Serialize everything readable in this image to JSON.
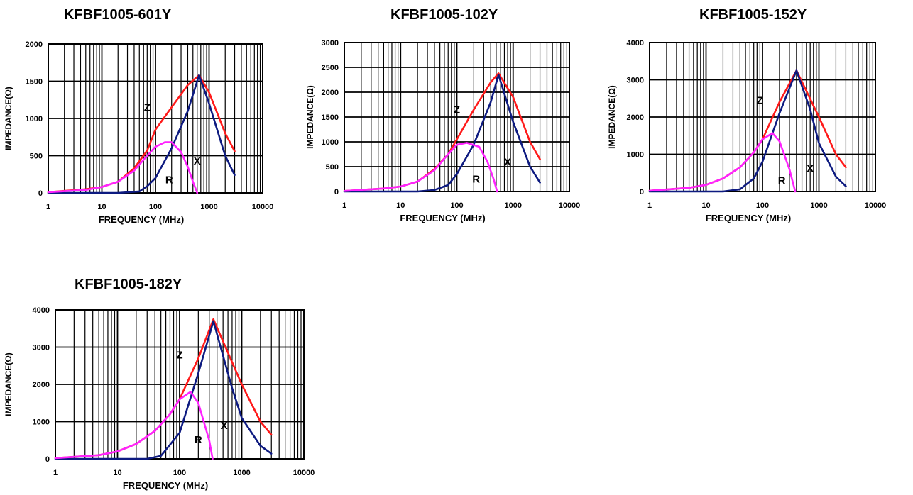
{
  "colors": {
    "Z": "#ff1a1a",
    "X": "#0d1a80",
    "R": "#ff22ff",
    "grid": "#000000"
  },
  "chart_data": [
    {
      "type": "line",
      "title": "KFBF1005-601Y",
      "xlabel": "FREQUENCY (MHz)",
      "ylabel": "IMPEDANCE(Ω)",
      "xscale": "log",
      "xlim": [
        1,
        10000
      ],
      "ylim": [
        0,
        2000
      ],
      "xticks": [
        "1",
        "10",
        "100",
        "1000",
        "10000"
      ],
      "yticks": [
        "0",
        "500",
        "1000",
        "1500",
        "2000"
      ],
      "series": [
        {
          "name": "Z",
          "x": [
            1,
            5,
            10,
            20,
            40,
            70,
            100,
            200,
            400,
            650,
            1000,
            2000,
            3000
          ],
          "y": [
            10,
            50,
            80,
            150,
            330,
            570,
            850,
            1150,
            1450,
            1580,
            1350,
            800,
            560
          ]
        },
        {
          "name": "X",
          "x": [
            1,
            20,
            50,
            70,
            100,
            200,
            400,
            650,
            1000,
            2000,
            3000
          ],
          "y": [
            0,
            0,
            20,
            90,
            200,
            600,
            1100,
            1580,
            1200,
            500,
            240
          ]
        },
        {
          "name": "R",
          "x": [
            1,
            5,
            10,
            20,
            40,
            70,
            100,
            150,
            200,
            300,
            400,
            500,
            600
          ],
          "y": [
            10,
            40,
            80,
            150,
            300,
            500,
            620,
            680,
            680,
            550,
            350,
            150,
            0
          ]
        }
      ],
      "annotations": [
        {
          "text": "Z",
          "x": 70,
          "y": 1100
        },
        {
          "text": "X",
          "x": 600,
          "y": 380
        },
        {
          "text": "R",
          "x": 180,
          "y": 130
        }
      ]
    },
    {
      "type": "line",
      "title": "KFBF1005-102Y",
      "xlabel": "FREQUENCY (MHz)",
      "ylabel": "IMPEDANCE(Ω)",
      "xscale": "log",
      "xlim": [
        1,
        10000
      ],
      "ylim": [
        0,
        3000
      ],
      "xticks": [
        "1",
        "10",
        "100",
        "1000",
        "10000"
      ],
      "yticks": [
        "0",
        "500",
        "1000",
        "1500",
        "2000",
        "2500",
        "3000"
      ],
      "series": [
        {
          "name": "Z",
          "x": [
            1,
            5,
            10,
            20,
            40,
            70,
            100,
            200,
            400,
            550,
            1000,
            2000,
            3000
          ],
          "y": [
            10,
            60,
            100,
            200,
            450,
            750,
            1050,
            1650,
            2200,
            2380,
            1900,
            1000,
            650
          ]
        },
        {
          "name": "X",
          "x": [
            1,
            20,
            40,
            70,
            100,
            200,
            400,
            550,
            1000,
            2000,
            3000
          ],
          "y": [
            0,
            0,
            30,
            130,
            350,
            950,
            1800,
            2350,
            1400,
            500,
            180
          ]
        },
        {
          "name": "R",
          "x": [
            1,
            5,
            10,
            20,
            40,
            70,
            100,
            150,
            250,
            350,
            450,
            520
          ],
          "y": [
            10,
            60,
            100,
            200,
            430,
            750,
            940,
            980,
            900,
            600,
            250,
            0
          ]
        }
      ],
      "annotations": [
        {
          "text": "Z",
          "x": 100,
          "y": 1580
        },
        {
          "text": "X",
          "x": 800,
          "y": 520
        },
        {
          "text": "R",
          "x": 220,
          "y": 180
        }
      ]
    },
    {
      "type": "line",
      "title": "KFBF1005-152Y",
      "xlabel": "FREQUENCY (MHz)",
      "ylabel": "IMPEDANCE(Ω)",
      "xscale": "log",
      "xlim": [
        1,
        10000
      ],
      "ylim": [
        0,
        4000
      ],
      "xticks": [
        "1",
        "10",
        "100",
        "1000",
        "10000"
      ],
      "yticks": [
        "0",
        "1000",
        "2000",
        "3000",
        "4000"
      ],
      "series": [
        {
          "name": "Z",
          "x": [
            1,
            5,
            10,
            20,
            40,
            70,
            100,
            200,
            400,
            1000,
            2000,
            3000
          ],
          "y": [
            20,
            100,
            180,
            350,
            650,
            1050,
            1400,
            2400,
            3250,
            2000,
            1000,
            650
          ]
        },
        {
          "name": "X",
          "x": [
            1,
            20,
            40,
            70,
            100,
            200,
            400,
            700,
            1000,
            2000,
            3000
          ],
          "y": [
            0,
            0,
            60,
            350,
            800,
            2100,
            3250,
            2200,
            1300,
            400,
            140
          ]
        },
        {
          "name": "R",
          "x": [
            1,
            5,
            10,
            20,
            40,
            70,
            100,
            150,
            200,
            300,
            380
          ],
          "y": [
            20,
            100,
            180,
            350,
            650,
            1050,
            1400,
            1570,
            1350,
            600,
            0
          ]
        }
      ],
      "annotations": [
        {
          "text": "Z",
          "x": 90,
          "y": 2350
        },
        {
          "text": "X",
          "x": 700,
          "y": 520
        },
        {
          "text": "R",
          "x": 220,
          "y": 200
        }
      ]
    },
    {
      "type": "line",
      "title": "KFBF1005-182Y",
      "xlabel": "FREQUENCY (MHz)",
      "ylabel": "IMPEDANCE(Ω)",
      "xscale": "log",
      "xlim": [
        1,
        10000
      ],
      "ylim": [
        0,
        4000
      ],
      "xticks": [
        "1",
        "10",
        "100",
        "1000",
        "10000"
      ],
      "yticks": [
        "0",
        "1000",
        "2000",
        "3000",
        "4000"
      ],
      "series": [
        {
          "name": "Z",
          "x": [
            1,
            5,
            10,
            20,
            40,
            70,
            100,
            200,
            350,
            1000,
            2000,
            3000
          ],
          "y": [
            20,
            100,
            200,
            400,
            750,
            1200,
            1600,
            2700,
            3750,
            2000,
            1000,
            650
          ]
        },
        {
          "name": "X",
          "x": [
            1,
            30,
            50,
            100,
            200,
            350,
            700,
            1000,
            2000,
            3000
          ],
          "y": [
            0,
            0,
            80,
            700,
            2300,
            3700,
            1900,
            1100,
            350,
            140
          ]
        },
        {
          "name": "R",
          "x": [
            1,
            5,
            10,
            20,
            40,
            70,
            100,
            150,
            200,
            300,
            340
          ],
          "y": [
            20,
            100,
            200,
            400,
            750,
            1200,
            1600,
            1800,
            1500,
            500,
            0
          ]
        }
      ],
      "annotations": [
        {
          "text": "Z",
          "x": 100,
          "y": 2700
        },
        {
          "text": "X",
          "x": 520,
          "y": 800
        },
        {
          "text": "R",
          "x": 200,
          "y": 420
        }
      ]
    }
  ]
}
